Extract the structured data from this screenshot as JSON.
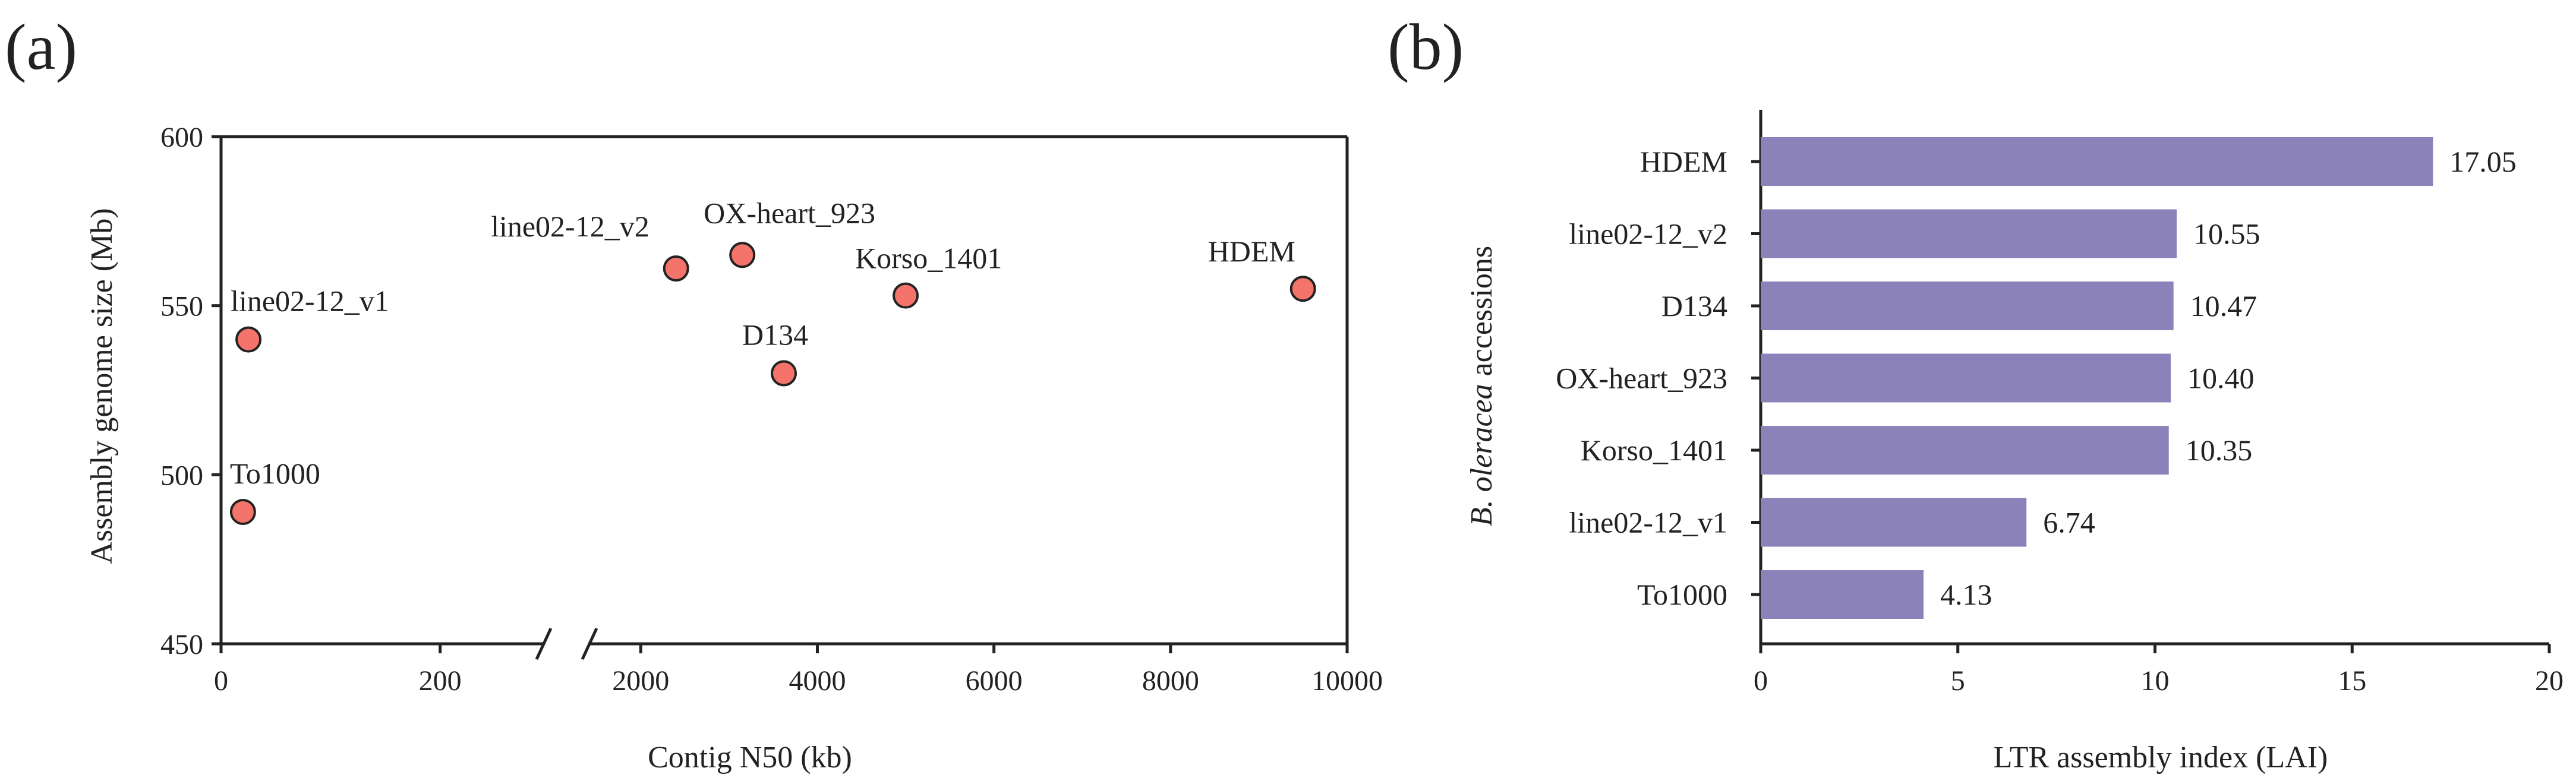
{
  "panels": {
    "a_label": "(a)",
    "b_label": "(b)"
  },
  "chart_data": [
    {
      "type": "scatter",
      "title": "",
      "xlabel": "Contig N50 (kb)",
      "ylabel": "Assembly genome size (Mb)",
      "ylim": [
        450,
        600
      ],
      "yticks": [
        450,
        500,
        550,
        600
      ],
      "x_axis_break": true,
      "x_segment_1": {
        "range": [
          0,
          300
        ],
        "ticks": [
          0,
          200
        ]
      },
      "x_segment_2": {
        "range": [
          1500,
          10000
        ],
        "ticks": [
          2000,
          4000,
          6000,
          8000,
          10000
        ]
      },
      "marker_color": "#f4736a",
      "points": [
        {
          "label": "To1000",
          "x": 20,
          "y": 489
        },
        {
          "label": "line02-12_v1",
          "x": 25,
          "y": 540
        },
        {
          "label": "line02-12_v2",
          "x": 2400,
          "y": 561
        },
        {
          "label": "OX-heart_923",
          "x": 3150,
          "y": 565
        },
        {
          "label": "D134",
          "x": 3620,
          "y": 530
        },
        {
          "label": "Korso_1401",
          "x": 5000,
          "y": 553
        },
        {
          "label": "HDEM",
          "x": 9500,
          "y": 555
        }
      ]
    },
    {
      "type": "bar",
      "orientation": "horizontal",
      "title": "",
      "xlabel": "LTR assembly index (LAI)",
      "ylabel_italic": "B. oleracea",
      "ylabel_rest": " accessions",
      "xlim": [
        0,
        20
      ],
      "xticks": [
        0,
        5,
        10,
        15,
        20
      ],
      "bar_color": "#8b82ba",
      "categories": [
        "HDEM",
        "line02-12_v2",
        "D134",
        "OX-heart_923",
        "Korso_1401",
        "line02-12_v1",
        "To1000"
      ],
      "values": [
        17.05,
        10.55,
        10.47,
        10.4,
        10.35,
        6.74,
        4.13
      ],
      "value_labels": [
        "17.05",
        "10.55",
        "10.47",
        "10.40",
        "10.35",
        "6.74",
        "4.13"
      ]
    }
  ]
}
